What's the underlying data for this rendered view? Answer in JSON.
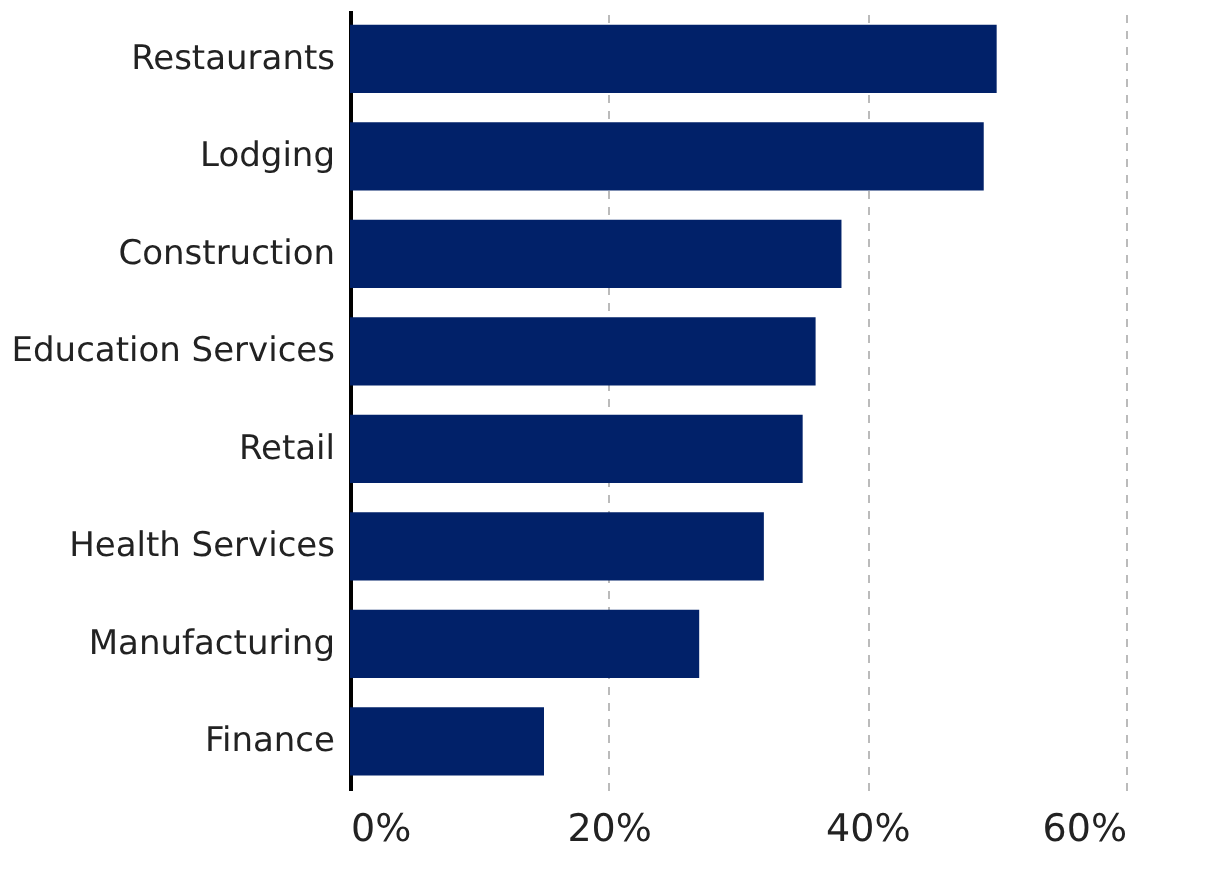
{
  "chart_data": {
    "type": "bar",
    "orientation": "horizontal",
    "categories": [
      "Restaurants",
      "Lodging",
      "Construction",
      "Education Services",
      "Retail",
      "Health Services",
      "Manufacturing",
      "Finance"
    ],
    "values": [
      50,
      49,
      38,
      36,
      35,
      32,
      27,
      15
    ],
    "color": "#012169",
    "xlim": [
      0,
      60
    ],
    "xticks": [
      {
        "value": 0,
        "label": "0%"
      },
      {
        "value": 20,
        "label": "20%"
      },
      {
        "value": 40,
        "label": "40%"
      },
      {
        "value": 60,
        "label": "60%"
      }
    ],
    "grid": "x"
  }
}
